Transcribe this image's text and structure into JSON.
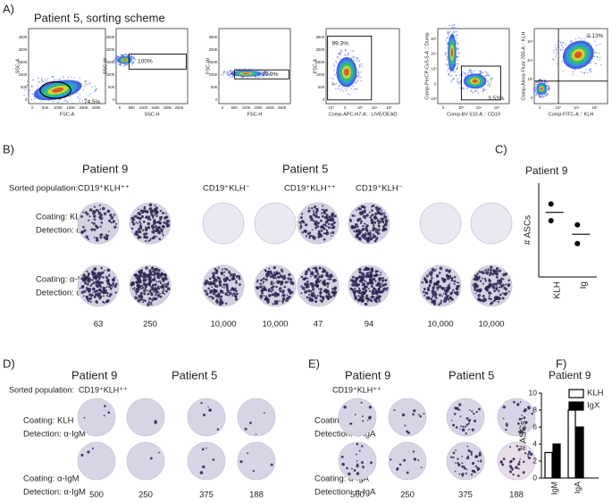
{
  "panel_a": {
    "label": "A)",
    "title": "Patient 5, sorting scheme",
    "plots": [
      {
        "ylabel": "SSC-A",
        "xlabel": "FSC-A",
        "gate": "74.5%",
        "xticks": [
          "0",
          "50K",
          "100K",
          "150K",
          "200K",
          "250K"
        ],
        "yticks": [
          "0",
          "50K",
          "100K",
          "150K",
          "200K",
          "250K"
        ]
      },
      {
        "ylabel": "SSC-W",
        "xlabel": "SSC-H",
        "gate": "100%",
        "xticks": [
          "0",
          "50K",
          "100K",
          "150K",
          "200K",
          "250K"
        ],
        "yticks": [
          "0",
          "50K",
          "100K",
          "150K",
          "200K",
          "250K"
        ]
      },
      {
        "ylabel": "FSC-W",
        "xlabel": "FSC-H",
        "gate": "99.9%",
        "xticks": [
          "0",
          "50K",
          "100K",
          "150K",
          "200K",
          "250K"
        ],
        "yticks": [
          "0",
          "50K",
          "100K",
          "150K",
          "200K",
          "250K"
        ]
      },
      {
        "ylabel": "FSC-A",
        "xlabel": "Comp-APC-H7-A :: LIVE/DEAD",
        "gate": "99.3%",
        "xticks": [
          "-10³",
          "0",
          "10³",
          "10⁴",
          "10⁵"
        ],
        "yticks": [
          "0",
          "50K",
          "100K",
          "150K",
          "200K",
          "250K"
        ]
      },
      {
        "ylabel": "Comp-PerCP-Cy5-5-A :: Dump",
        "xlabel": "Comp-BV 510-A :: CD19",
        "gate": "3.53%",
        "xticks": [
          "0",
          "10³",
          "10⁴",
          "10⁵"
        ],
        "yticks": [
          "-10³",
          "0",
          "10³",
          "10⁴",
          "10⁵"
        ]
      },
      {
        "ylabel": "Comp-Alexa Fluor 700-A :: KLH",
        "xlabel": "Comp-FITC-A :: KLH",
        "gate": "2.13%",
        "xticks": [
          "0",
          "10³",
          "10⁴",
          "10⁵"
        ],
        "yticks": [
          "0",
          "10³",
          "10⁴",
          "10⁵"
        ]
      }
    ]
  },
  "panel_b": {
    "label": "B)",
    "patients": [
      "Patient 9",
      "Patient 5"
    ],
    "sorted_label": "Sorted population:",
    "populations": [
      "CD19⁺KLH⁺⁺",
      "CD19⁺KLH⁻",
      "CD19⁺KLH⁺⁺",
      "CD19⁺KLH⁻"
    ],
    "rows": [
      {
        "coating": "Coating: KLH",
        "detection": "Detection: α-IgG"
      },
      {
        "coating": "Coating: α-IgG",
        "detection": "Detection: α-IgG"
      }
    ],
    "counts": [
      "63",
      "250",
      "10,000",
      "10,000",
      "47",
      "94",
      "10,000",
      "10,000"
    ]
  },
  "panel_c": {
    "label": "C)",
    "type": "scatter",
    "title": "Patient 9",
    "ylabel": "# ASCs",
    "categories": [
      "KLH",
      "Ig"
    ],
    "points": [
      [
        65,
        57
      ],
      [
        55,
        46
      ]
    ],
    "means": [
      61,
      50.5
    ],
    "ylim": [
      30,
      75
    ]
  },
  "panel_d": {
    "label": "D)",
    "patients": [
      "Patient 9",
      "Patient 5"
    ],
    "sorted_label": "Sorted population:",
    "population": "CD19⁺KLH⁺⁺",
    "rows": [
      {
        "coating": "Coating: KLH",
        "detection": "Detection: α-IgM"
      },
      {
        "coating": "Coating: α-IgM",
        "detection": "Detection: α-IgM"
      }
    ],
    "counts": [
      "500",
      "250",
      "375",
      "188"
    ]
  },
  "panel_e": {
    "label": "E)",
    "patients": [
      "Patient 9",
      "Patient 5"
    ],
    "population": "CD19⁺KLH⁺⁺",
    "rows": [
      {
        "coating": "Coating: KLH",
        "detection": "Detection: α-IgA"
      },
      {
        "coating": "Coating: α-IgA",
        "detection": "Detection: α-IgA"
      }
    ],
    "counts": [
      "500",
      "250",
      "375",
      "188"
    ]
  },
  "panel_f": {
    "label": "F)",
    "type": "bar",
    "title": "Patient 9",
    "ylabel": "# ASCs",
    "categories": [
      "IgM",
      "IgA"
    ],
    "series": [
      {
        "name": "KLH",
        "color": "#ffffff",
        "values": [
          3,
          8
        ]
      },
      {
        "name": "IgX",
        "color": "#000000",
        "values": [
          4,
          6
        ]
      }
    ],
    "ylim": [
      0,
      10
    ],
    "yticks": [
      0,
      2,
      4,
      6,
      8,
      10
    ]
  }
}
